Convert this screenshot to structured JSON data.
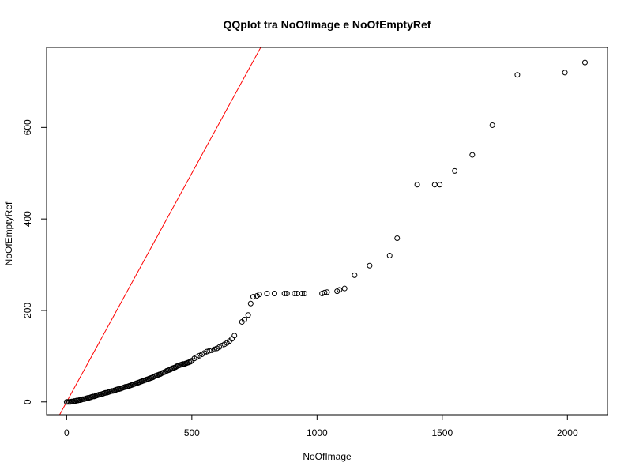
{
  "chart_data": {
    "type": "scatter",
    "title": "QQplot tra NoOfImage e NoOfEmptyRef",
    "xlabel": "NoOfImage",
    "ylabel": "NoOfEmptyRef",
    "xlim": [
      -80,
      2160
    ],
    "ylim": [
      -28,
      775
    ],
    "xticks": [
      0,
      500,
      1000,
      1500,
      2000
    ],
    "yticks": [
      0,
      200,
      400,
      600
    ],
    "grid": false,
    "reference_line": {
      "intercept": 0,
      "slope": 1,
      "color": "#ff0000"
    },
    "point_color": "#000000",
    "series": [
      {
        "points": [
          [
            0,
            0
          ],
          [
            5,
            0
          ],
          [
            10,
            0
          ],
          [
            15,
            0
          ],
          [
            20,
            1
          ],
          [
            25,
            1
          ],
          [
            30,
            2
          ],
          [
            35,
            2
          ],
          [
            40,
            3
          ],
          [
            45,
            3
          ],
          [
            50,
            4
          ],
          [
            55,
            4
          ],
          [
            60,
            5
          ],
          [
            65,
            6
          ],
          [
            70,
            6
          ],
          [
            75,
            7
          ],
          [
            80,
            8
          ],
          [
            85,
            9
          ],
          [
            90,
            9
          ],
          [
            95,
            10
          ],
          [
            100,
            11
          ],
          [
            105,
            12
          ],
          [
            110,
            12
          ],
          [
            115,
            13
          ],
          [
            120,
            14
          ],
          [
            125,
            15
          ],
          [
            130,
            16
          ],
          [
            135,
            16
          ],
          [
            140,
            17
          ],
          [
            145,
            18
          ],
          [
            150,
            19
          ],
          [
            155,
            20
          ],
          [
            160,
            20
          ],
          [
            165,
            21
          ],
          [
            170,
            22
          ],
          [
            175,
            23
          ],
          [
            180,
            24
          ],
          [
            185,
            24
          ],
          [
            190,
            25
          ],
          [
            195,
            26
          ],
          [
            200,
            27
          ],
          [
            205,
            28
          ],
          [
            210,
            28
          ],
          [
            215,
            29
          ],
          [
            220,
            30
          ],
          [
            225,
            31
          ],
          [
            230,
            32
          ],
          [
            235,
            33
          ],
          [
            240,
            33
          ],
          [
            245,
            34
          ],
          [
            250,
            35
          ],
          [
            255,
            36
          ],
          [
            260,
            37
          ],
          [
            265,
            38
          ],
          [
            270,
            39
          ],
          [
            275,
            40
          ],
          [
            280,
            41
          ],
          [
            285,
            42
          ],
          [
            290,
            43
          ],
          [
            295,
            44
          ],
          [
            300,
            45
          ],
          [
            305,
            46
          ],
          [
            310,
            47
          ],
          [
            315,
            48
          ],
          [
            320,
            49
          ],
          [
            325,
            50
          ],
          [
            330,
            51
          ],
          [
            335,
            52
          ],
          [
            340,
            53
          ],
          [
            345,
            54
          ],
          [
            350,
            56
          ],
          [
            355,
            57
          ],
          [
            360,
            58
          ],
          [
            365,
            59
          ],
          [
            370,
            60
          ],
          [
            375,
            61
          ],
          [
            380,
            63
          ],
          [
            385,
            64
          ],
          [
            390,
            65
          ],
          [
            395,
            66
          ],
          [
            400,
            68
          ],
          [
            405,
            69
          ],
          [
            410,
            70
          ],
          [
            415,
            71
          ],
          [
            420,
            73
          ],
          [
            425,
            74
          ],
          [
            430,
            75
          ],
          [
            435,
            76
          ],
          [
            440,
            78
          ],
          [
            445,
            79
          ],
          [
            450,
            80
          ],
          [
            455,
            81
          ],
          [
            460,
            82
          ],
          [
            465,
            83
          ],
          [
            470,
            83
          ],
          [
            475,
            84
          ],
          [
            480,
            85
          ],
          [
            485,
            86
          ],
          [
            490,
            87
          ],
          [
            495,
            88
          ],
          [
            500,
            90
          ],
          [
            510,
            95
          ],
          [
            520,
            98
          ],
          [
            530,
            101
          ],
          [
            540,
            104
          ],
          [
            550,
            107
          ],
          [
            560,
            110
          ],
          [
            570,
            112
          ],
          [
            580,
            113
          ],
          [
            590,
            115
          ],
          [
            600,
            117
          ],
          [
            610,
            120
          ],
          [
            620,
            123
          ],
          [
            630,
            126
          ],
          [
            640,
            129
          ],
          [
            650,
            133
          ],
          [
            660,
            138
          ],
          [
            670,
            145
          ],
          [
            700,
            175
          ],
          [
            710,
            180
          ],
          [
            725,
            190
          ],
          [
            735,
            215
          ],
          [
            745,
            230
          ],
          [
            760,
            232
          ],
          [
            770,
            235
          ],
          [
            800,
            237
          ],
          [
            830,
            237
          ],
          [
            870,
            237
          ],
          [
            880,
            237
          ],
          [
            910,
            237
          ],
          [
            920,
            237
          ],
          [
            940,
            237
          ],
          [
            950,
            237
          ],
          [
            1020,
            237
          ],
          [
            1030,
            239
          ],
          [
            1040,
            240
          ],
          [
            1080,
            242
          ],
          [
            1090,
            245
          ],
          [
            1110,
            248
          ],
          [
            1150,
            277
          ],
          [
            1210,
            298
          ],
          [
            1290,
            320
          ],
          [
            1320,
            358
          ],
          [
            1400,
            475
          ],
          [
            1470,
            475
          ],
          [
            1490,
            475
          ],
          [
            1550,
            505
          ],
          [
            1620,
            540
          ],
          [
            1700,
            605
          ],
          [
            1800,
            715
          ],
          [
            1990,
            720
          ],
          [
            2070,
            742
          ]
        ]
      }
    ]
  }
}
